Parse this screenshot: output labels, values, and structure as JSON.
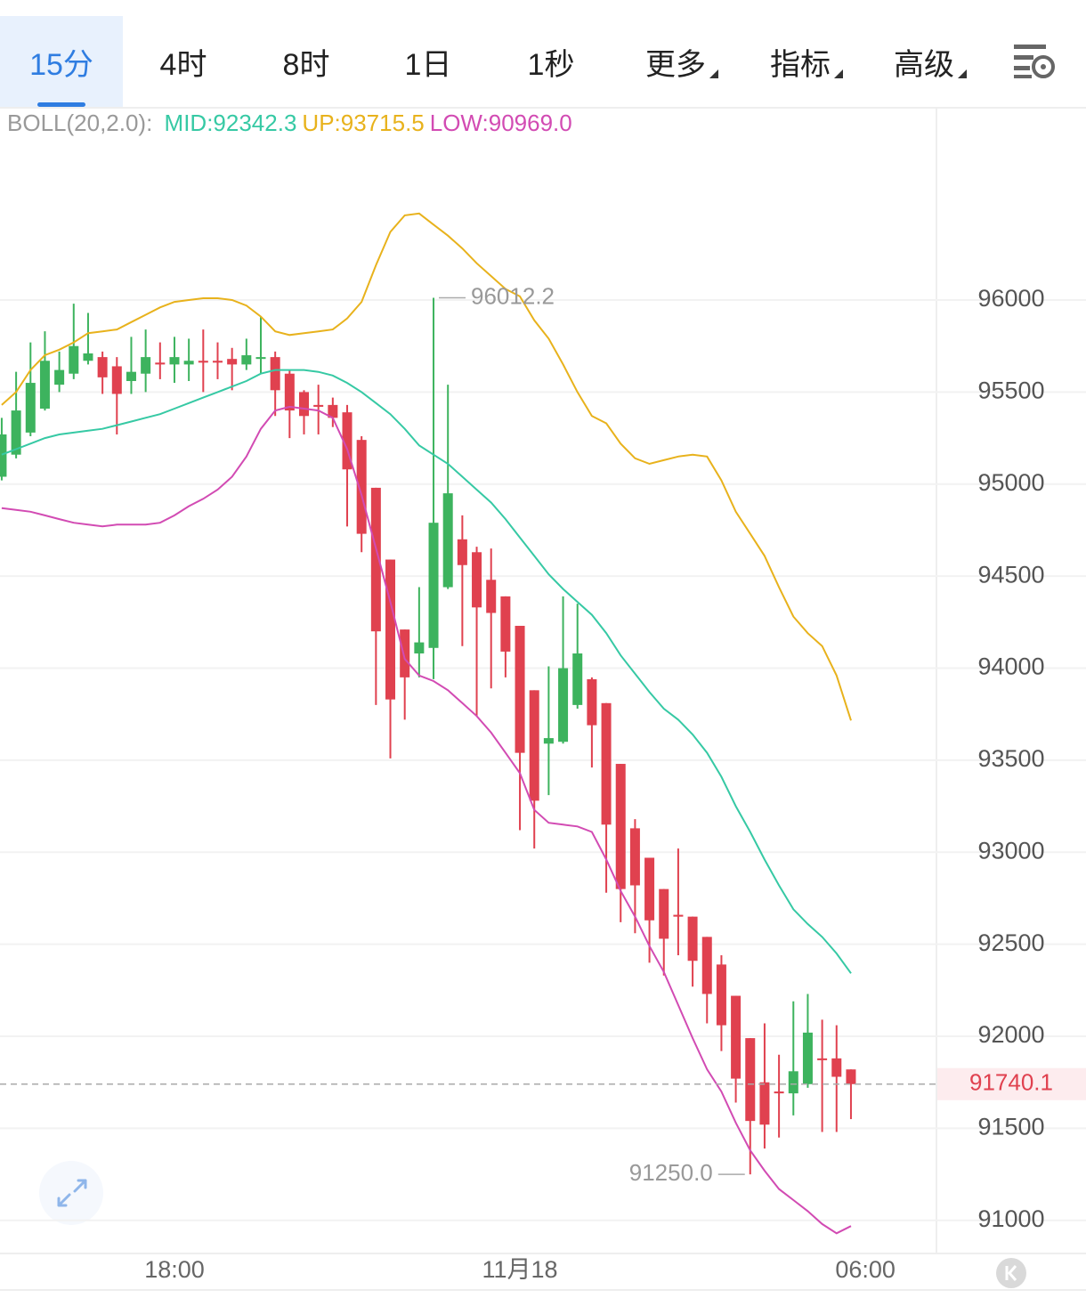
{
  "toolbar": {
    "tabs": [
      "15分",
      "4时",
      "8时",
      "1日",
      "1秒",
      "更多",
      "指标",
      "高级"
    ],
    "active": "15分",
    "menus": [
      "更多",
      "指标",
      "高级"
    ]
  },
  "chart_data": {
    "type": "candlestick",
    "indicator": "BOLL(20,2.0):",
    "up_color": "#3db35e",
    "down_color": "#e0414f",
    "open": [
      95040,
      95160,
      95280,
      95410,
      95540,
      95600,
      95670,
      95690,
      95640,
      95560,
      95600,
      95660,
      95650,
      95650,
      95670,
      95670,
      95680,
      95650,
      95680,
      95690,
      95600,
      95500,
      95430,
      95430,
      95390,
      95240,
      94980,
      94590,
      94210,
      94080,
      94110,
      94440,
      94700,
      94630,
      94480,
      94390,
      94230,
      93880,
      93590,
      93600,
      93800,
      93940,
      93810,
      93480,
      93130,
      92970,
      92800,
      92660,
      92650,
      92540,
      92390,
      92220,
      91990,
      91750,
      91700,
      91690,
      91740,
      91880,
      91880,
      91820
    ],
    "high": [
      95360,
      95610,
      95770,
      95830,
      95720,
      95980,
      95930,
      95720,
      95690,
      95800,
      95840,
      95770,
      95800,
      95790,
      95840,
      95770,
      95740,
      95790,
      95910,
      95720,
      95620,
      95510,
      95540,
      95470,
      95430,
      95260,
      94980,
      94590,
      94210,
      94440,
      96012.2,
      95540,
      94830,
      94660,
      94650,
      94390,
      94230,
      93880,
      94010,
      94390,
      94350,
      93950,
      93810,
      93480,
      93180,
      92970,
      92800,
      93020,
      92650,
      92540,
      92440,
      92220,
      91990,
      92070,
      91900,
      92190,
      92230,
      92090,
      92060,
      91820
    ],
    "low": [
      95020,
      95140,
      95260,
      95400,
      95500,
      95570,
      95650,
      95490,
      95270,
      95490,
      95500,
      95570,
      95550,
      95560,
      95500,
      95570,
      95510,
      95620,
      95600,
      95370,
      95250,
      95270,
      95270,
      95310,
      94770,
      94630,
      93800,
      93510,
      93720,
      93950,
      93940,
      94430,
      94120,
      93740,
      93890,
      93950,
      93120,
      93020,
      93310,
      93590,
      93780,
      93460,
      92780,
      92620,
      92560,
      92400,
      92330,
      92440,
      92270,
      92070,
      91920,
      91640,
      91250,
      91390,
      91450,
      91570,
      91720,
      91480,
      91480,
      91550
    ],
    "close": [
      95270,
      95400,
      95550,
      95670,
      95620,
      95750,
      95710,
      95580,
      95490,
      95610,
      95690,
      95650,
      95690,
      95670,
      95660,
      95660,
      95650,
      95700,
      95690,
      95510,
      95400,
      95370,
      95420,
      95360,
      95080,
      94730,
      94200,
      93830,
      93950,
      94140,
      94790,
      94950,
      94560,
      94330,
      94300,
      94090,
      93540,
      93280,
      93620,
      94000,
      94080,
      93690,
      93150,
      92800,
      92820,
      92630,
      92530,
      92650,
      92410,
      92230,
      92060,
      91770,
      91540,
      91520,
      91690,
      91810,
      92020,
      91870,
      91780,
      91740.1
    ],
    "series": [
      {
        "name": "MID:92342.3",
        "color": "#36c9a4",
        "values": [
          95160,
          95190,
          95220,
          95250,
          95270,
          95280,
          95290,
          95300,
          95320,
          95340,
          95360,
          95380,
          95410,
          95440,
          95470,
          95500,
          95530,
          95560,
          95600,
          95620,
          95620,
          95620,
          95610,
          95590,
          95550,
          95500,
          95440,
          95380,
          95300,
          95210,
          95160,
          95110,
          95040,
          94970,
          94900,
          94810,
          94710,
          94610,
          94510,
          94430,
          94360,
          94290,
          94190,
          94070,
          93970,
          93870,
          93780,
          93720,
          93640,
          93540,
          93410,
          93250,
          93110,
          92960,
          92820,
          92690,
          92610,
          92540,
          92450,
          92342.3
        ]
      },
      {
        "name": "UP:93715.5",
        "color": "#e8b21c",
        "values": [
          95430,
          95500,
          95620,
          95700,
          95730,
          95770,
          95820,
          95830,
          95840,
          95880,
          95920,
          95960,
          95990,
          96000,
          96010,
          96010,
          96000,
          95970,
          95910,
          95830,
          95810,
          95820,
          95830,
          95840,
          95900,
          95990,
          96190,
          96370,
          96460,
          96470,
          96410,
          96350,
          96280,
          96200,
          96130,
          96060,
          96020,
          95890,
          95790,
          95650,
          95500,
          95370,
          95330,
          95220,
          95140,
          95110,
          95130,
          95150,
          95160,
          95150,
          95020,
          94850,
          94730,
          94610,
          94440,
          94280,
          94190,
          94120,
          93960,
          93715.5
        ]
      },
      {
        "name": "LOW:90969.0",
        "color": "#d24bb3",
        "values": [
          94870,
          94860,
          94850,
          94830,
          94810,
          94790,
          94780,
          94770,
          94780,
          94780,
          94780,
          94790,
          94830,
          94880,
          94920,
          94970,
          95040,
          95150,
          95300,
          95400,
          95420,
          95410,
          95400,
          95360,
          95190,
          94940,
          94650,
          94360,
          94050,
          93960,
          93930,
          93880,
          93810,
          93740,
          93650,
          93540,
          93430,
          93230,
          93160,
          93150,
          93140,
          93110,
          92960,
          92790,
          92650,
          92490,
          92350,
          92170,
          91990,
          91820,
          91700,
          91530,
          91380,
          91270,
          91170,
          91110,
          91050,
          90980,
          90930,
          90969
        ]
      }
    ],
    "last_price": 91740.1,
    "max_label": {
      "value": 96012.2,
      "label": "96012.2"
    },
    "min_label": {
      "value": 91250,
      "label": "91250.0"
    },
    "xlim": [
      -0.12,
      64.94
    ],
    "xticks": [
      {
        "value": 12,
        "label": "18:00"
      },
      {
        "value": 36,
        "label": "11月18"
      },
      {
        "value": 60,
        "label": "06:00"
      }
    ],
    "ylim": [
      90820,
      97040
    ],
    "yticks": [
      91000,
      91500,
      92000,
      92500,
      93000,
      93500,
      94000,
      94500,
      95000,
      95500,
      96000
    ],
    "grid": true
  }
}
